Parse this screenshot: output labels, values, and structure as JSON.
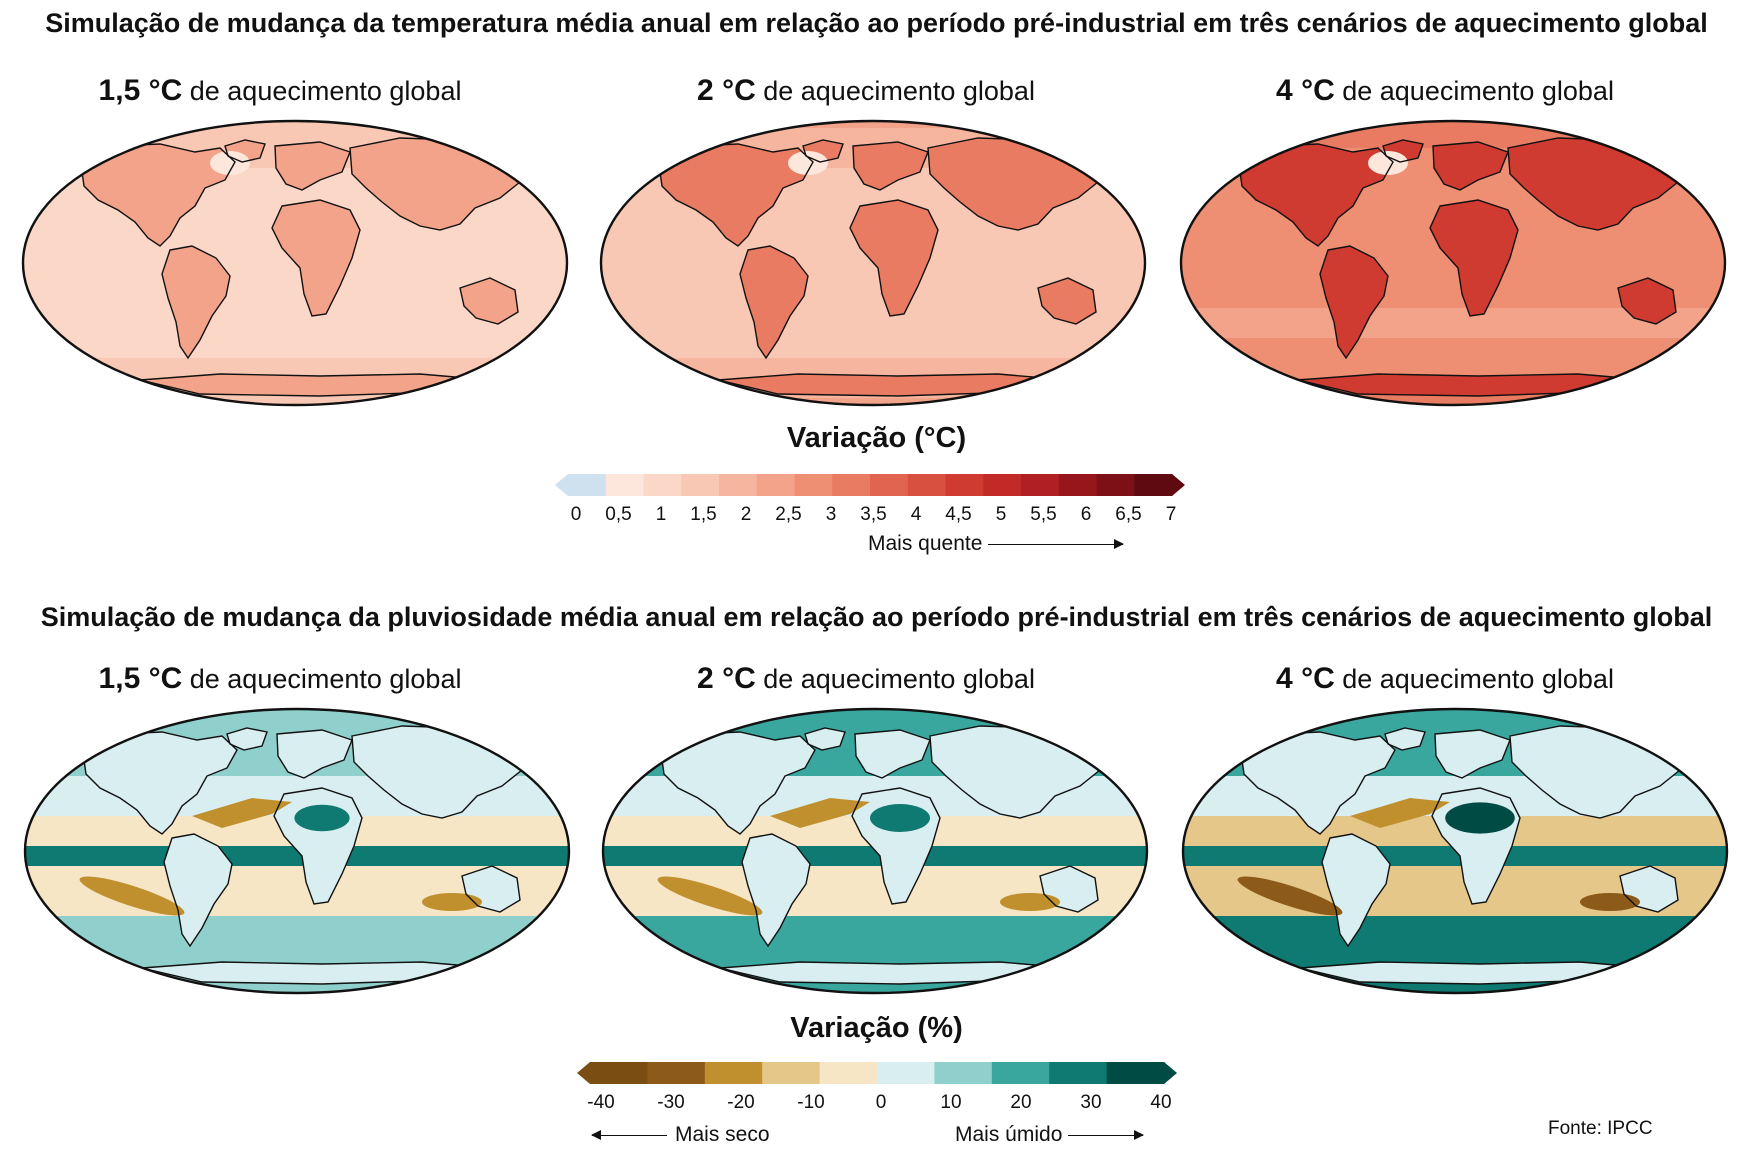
{
  "temperature": {
    "title": "Simulação de mudança da temperatura média anual em relação ao período pré-industrial em três cenários de aquecimento global",
    "panels": [
      {
        "deg": "1,5 °C",
        "rest": " de aquecimento global",
        "intensity": 0.25
      },
      {
        "deg": "2 °C",
        "rest": " de aquecimento global",
        "intensity": 0.45
      },
      {
        "deg": "4 °C",
        "rest": " de aquecimento global",
        "intensity": 0.85
      }
    ],
    "legend_title": "Variação (°C)",
    "ticks": [
      "0",
      "0,5",
      "1",
      "1,5",
      "2",
      "2,5",
      "3",
      "3,5",
      "4",
      "4,5",
      "5",
      "5,5",
      "6",
      "6,5",
      "7"
    ],
    "colors": [
      "#cfe0ef",
      "#fde6dc",
      "#fbd7c8",
      "#f9c8b4",
      "#f6b59e",
      "#f2a389",
      "#ee8f74",
      "#e87b61",
      "#e1654e",
      "#d8503f",
      "#cf3a31",
      "#c22a27",
      "#b01f22",
      "#97161b",
      "#7c1016",
      "#5e0a10"
    ],
    "arrow_label": "Mais quente"
  },
  "precipitation": {
    "title": "Simulação de mudança da pluviosidade média anual em relação ao período pré-industrial em três cenários de aquecimento global",
    "panels": [
      {
        "deg": "1,5 °C",
        "rest": " de aquecimento global",
        "intensity": 0.3
      },
      {
        "deg": "2 °C",
        "rest": " de aquecimento global",
        "intensity": 0.5
      },
      {
        "deg": "4 °C",
        "rest": " de aquecimento global",
        "intensity": 0.9
      }
    ],
    "legend_title": "Variação (%)",
    "ticks": [
      "-40",
      "-30",
      "-20",
      "-10",
      "0",
      "10",
      "20",
      "30",
      "40"
    ],
    "colors": [
      "#7a4d12",
      "#8c5a19",
      "#c0902e",
      "#e5c78a",
      "#f6e6c6",
      "#d9eef0",
      "#8fd0cc",
      "#3aa79f",
      "#0e7a71",
      "#004b44"
    ],
    "dry_label": "Mais seco",
    "wet_label": "Mais úmido"
  },
  "source": "Fonte: IPCC"
}
